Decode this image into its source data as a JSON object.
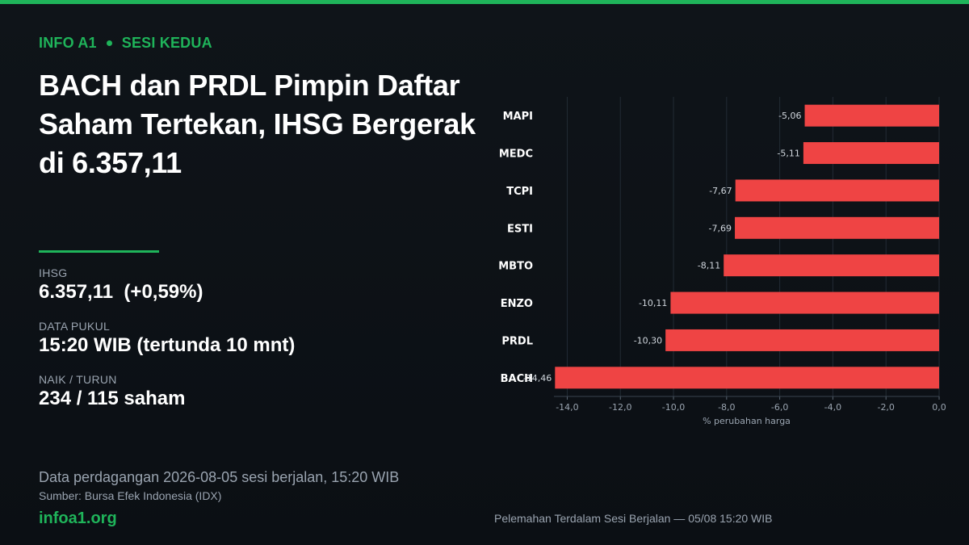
{
  "header": {
    "brand": "INFO A1",
    "section": "SESI KEDUA",
    "headline": "BACH dan PRDL Pimpin Daftar Saham Tertekan, IHSG Bergerak di 6.357,11"
  },
  "stats": {
    "ihsg_label": "IHSG",
    "ihsg_value": "6.357,11  (+0,59%)",
    "time_label": "DATA PUKUL",
    "time_value": "15:20 WIB (tertunda 10 mnt)",
    "breadth_label": "NAIK / TURUN",
    "breadth_value": "234 / 115 saham"
  },
  "footer": {
    "note": "Data perdagangan 2026-08-05 sesi berjalan, 15:20 WIB",
    "source": "Sumber: Bursa Efek Indonesia (IDX)",
    "site": "infoa1.org",
    "chart_caption": "Pelemahan Terdalam Sesi Berjalan — 05/08 15:20 WIB"
  },
  "colors": {
    "accent": "#1fb45a",
    "bar": "#ef4444",
    "background": "#0d1217"
  },
  "chart_data": {
    "type": "bar",
    "orientation": "horizontal",
    "categories": [
      "MAPI",
      "MEDC",
      "TCPI",
      "ESTI",
      "MBTO",
      "ENZO",
      "PRDL",
      "BACH"
    ],
    "values": [
      -5.06,
      -5.11,
      -7.67,
      -7.69,
      -8.11,
      -10.11,
      -10.3,
      -14.46
    ],
    "data_labels": [
      "-5,06",
      "-5,11",
      "-7,67",
      "-7,69",
      "-8,11",
      "-10,11",
      "-10,30",
      "-14,46"
    ],
    "xlabel": "% perubahan harga",
    "ylabel": "",
    "xlim": [
      -14.5,
      0
    ],
    "xticks": [
      -14,
      -12,
      -10,
      -8,
      -6,
      -4,
      -2,
      0
    ],
    "xtick_labels": [
      "-14,0",
      "-12,0",
      "-10,0",
      "-8,0",
      "-6,0",
      "-4,0",
      "-2,0",
      "0,0"
    ],
    "grid": true,
    "legend": "none"
  }
}
